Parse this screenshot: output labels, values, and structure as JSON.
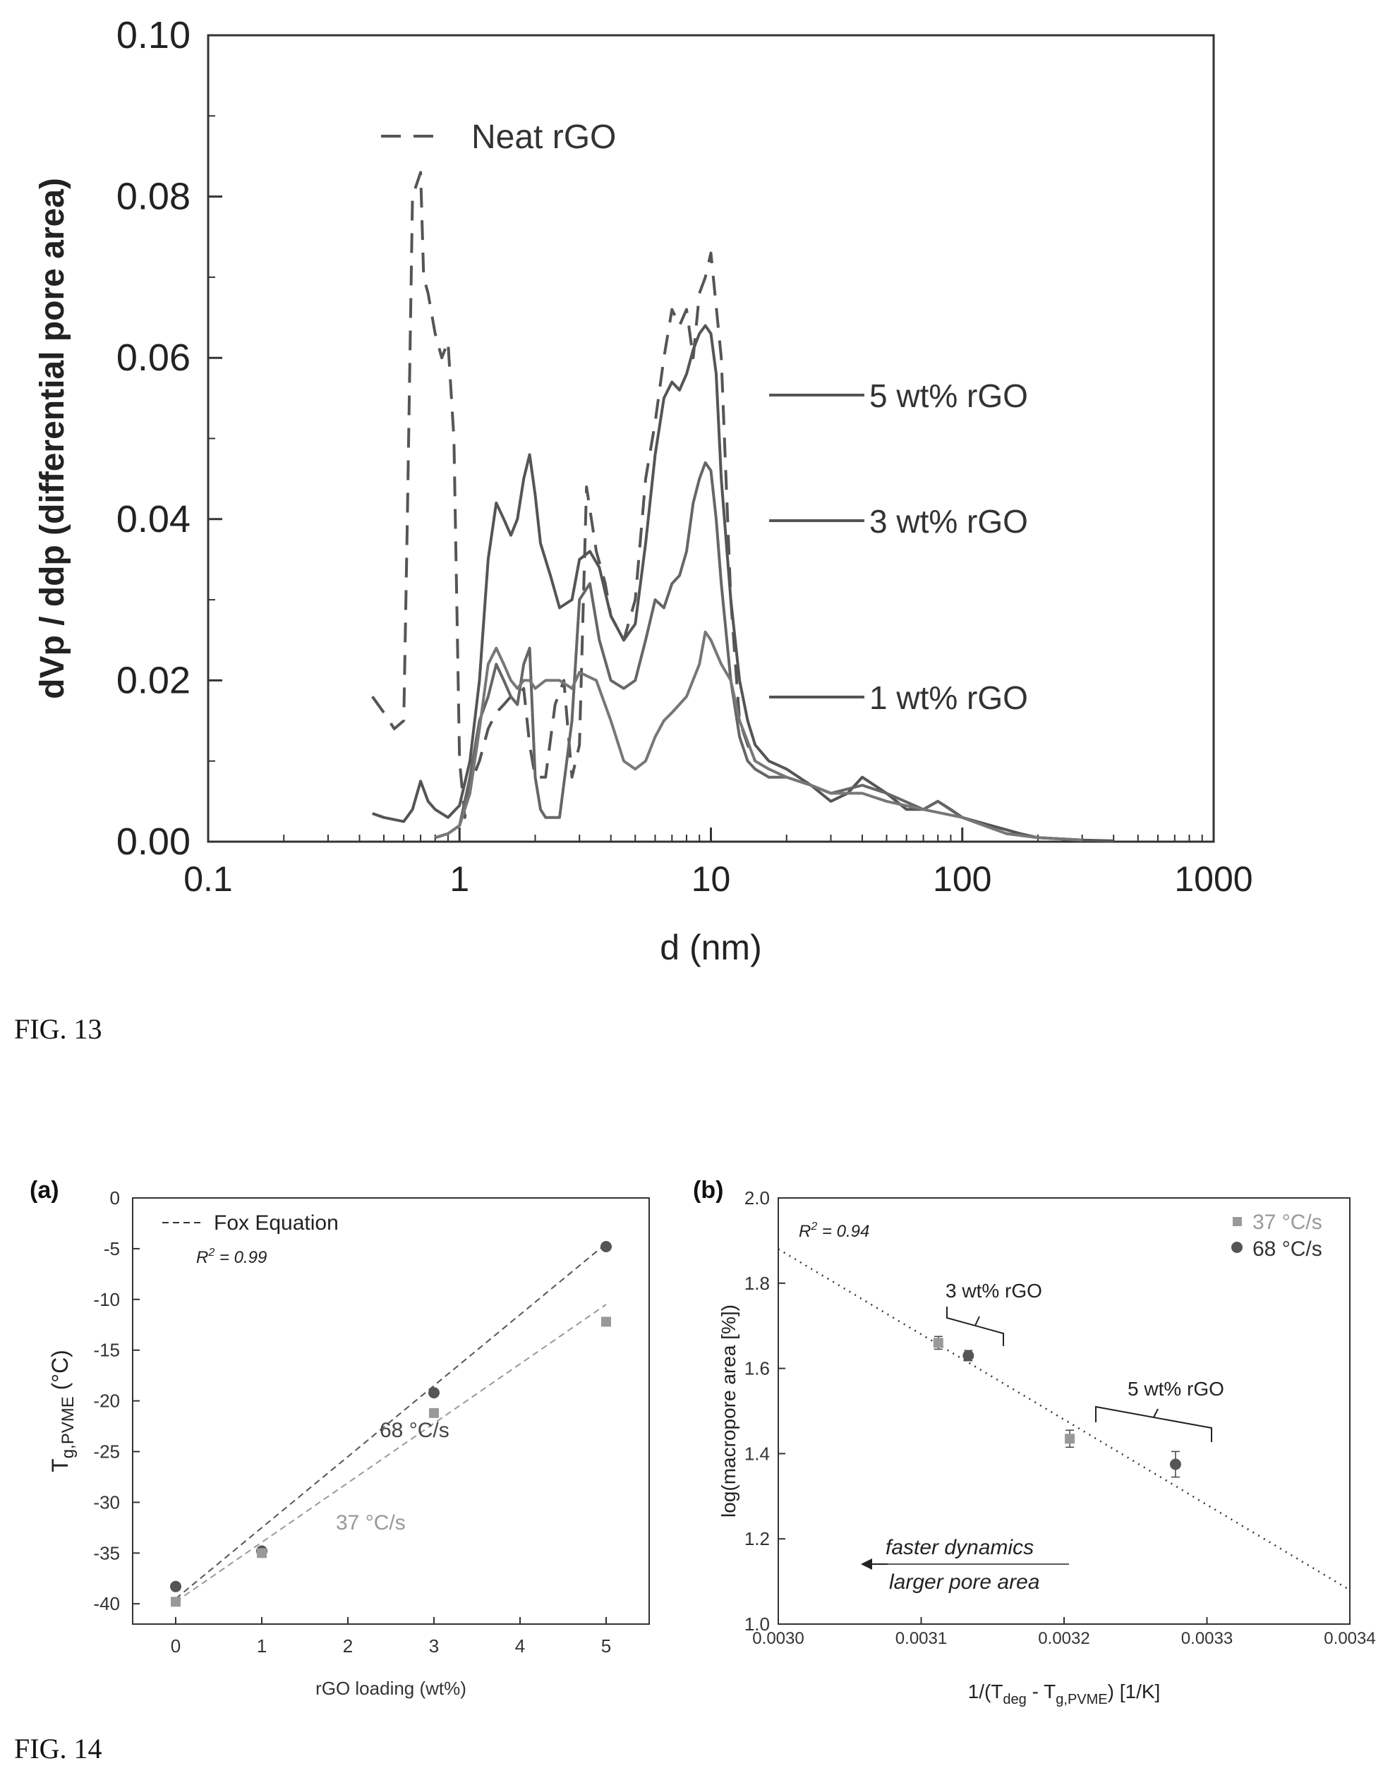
{
  "fig13_label": "FIG. 13",
  "fig14_label": "FIG. 14",
  "chart_data": [
    {
      "type": "line",
      "xlabel": "d (nm)",
      "ylabel": "dVp / ddp (differential pore area)",
      "xscale": "log",
      "xlim": [
        0.1,
        1000
      ],
      "ylim": [
        0,
        0.1
      ],
      "xticks": [
        "0.1",
        "1",
        "10",
        "100",
        "1000"
      ],
      "yticks": [
        "0.00",
        "0.02",
        "0.04",
        "0.06",
        "0.08",
        "0.10"
      ],
      "grid": false,
      "series": [
        {
          "name": "Neat rGO",
          "style": "dashed",
          "x": [
            0.45,
            0.5,
            0.55,
            0.6,
            0.62,
            0.65,
            0.7,
            0.72,
            0.75,
            0.8,
            0.85,
            0.9,
            0.95,
            1.0,
            1.05,
            1.1,
            1.2,
            1.3,
            1.4,
            1.5,
            1.6,
            1.7,
            1.8,
            1.9,
            2.0,
            2.2,
            2.4,
            2.6,
            2.8,
            3.0,
            3.2,
            3.5,
            3.8,
            4.0,
            4.5,
            5.0,
            5.5,
            6.0,
            6.5,
            7.0,
            7.5,
            8.0,
            8.5,
            9.0,
            9.5,
            10.0,
            11.0,
            12.0,
            13.0,
            14.0,
            15.0
          ],
          "y": [
            0.018,
            0.016,
            0.014,
            0.015,
            0.04,
            0.08,
            0.083,
            0.07,
            0.068,
            0.063,
            0.06,
            0.062,
            0.05,
            0.01,
            0.003,
            0.007,
            0.01,
            0.014,
            0.016,
            0.017,
            0.018,
            0.018,
            0.019,
            0.012,
            0.008,
            0.008,
            0.017,
            0.02,
            0.008,
            0.012,
            0.044,
            0.036,
            0.032,
            0.028,
            0.025,
            0.03,
            0.045,
            0.052,
            0.06,
            0.066,
            0.064,
            0.066,
            0.06,
            0.068,
            0.07,
            0.073,
            0.06,
            0.03,
            0.015,
            0.012,
            0.01
          ]
        },
        {
          "name": "5 wt% rGO",
          "style": "solid",
          "x": [
            0.45,
            0.5,
            0.6,
            0.65,
            0.7,
            0.75,
            0.8,
            0.9,
            1.0,
            1.1,
            1.2,
            1.3,
            1.4,
            1.5,
            1.6,
            1.7,
            1.8,
            1.9,
            2.0,
            2.1,
            2.3,
            2.5,
            2.8,
            3.0,
            3.3,
            3.6,
            4.0,
            4.5,
            5.0,
            5.5,
            6.0,
            6.5,
            7.0,
            7.5,
            8.0,
            8.5,
            9.0,
            9.5,
            10.0,
            10.5,
            11.0,
            12.0,
            13.0,
            14.0,
            15.0,
            17.0,
            20.0,
            25.0,
            30.0,
            35.0,
            40.0,
            50.0,
            60.0,
            70.0,
            80.0,
            90.0,
            100.0,
            130.0,
            170.0,
            200.0,
            300.0,
            400.0
          ],
          "y": [
            0.0035,
            0.003,
            0.0025,
            0.004,
            0.0075,
            0.005,
            0.004,
            0.003,
            0.0045,
            0.01,
            0.02,
            0.035,
            0.042,
            0.04,
            0.038,
            0.04,
            0.045,
            0.048,
            0.043,
            0.037,
            0.033,
            0.029,
            0.03,
            0.035,
            0.036,
            0.034,
            0.028,
            0.025,
            0.027,
            0.037,
            0.048,
            0.055,
            0.057,
            0.056,
            0.058,
            0.061,
            0.063,
            0.064,
            0.063,
            0.058,
            0.045,
            0.03,
            0.02,
            0.015,
            0.012,
            0.01,
            0.009,
            0.007,
            0.005,
            0.006,
            0.008,
            0.006,
            0.004,
            0.004,
            0.005,
            0.004,
            0.003,
            0.002,
            0.001,
            0.0005,
            0.0002,
            0.0001
          ]
        },
        {
          "name": "3 wt% rGO",
          "style": "solid",
          "x": [
            0.8,
            0.9,
            1.0,
            1.1,
            1.2,
            1.3,
            1.4,
            1.5,
            1.6,
            1.7,
            1.8,
            1.9,
            2.0,
            2.1,
            2.2,
            2.5,
            2.8,
            3.0,
            3.3,
            3.6,
            4.0,
            4.5,
            5.0,
            5.5,
            6.0,
            6.5,
            7.0,
            7.5,
            8.0,
            8.5,
            9.0,
            9.5,
            10.0,
            10.5,
            11.0,
            12.0,
            13.0,
            14.0,
            15.0,
            17.0,
            20.0,
            25.0,
            30.0,
            40.0,
            50.0,
            70.0,
            80.0,
            100.0,
            150.0,
            200.0,
            300.0
          ],
          "y": [
            0.0005,
            0.001,
            0.002,
            0.008,
            0.015,
            0.018,
            0.022,
            0.02,
            0.018,
            0.017,
            0.022,
            0.024,
            0.008,
            0.004,
            0.003,
            0.003,
            0.015,
            0.03,
            0.032,
            0.025,
            0.02,
            0.019,
            0.02,
            0.025,
            0.03,
            0.029,
            0.032,
            0.033,
            0.036,
            0.042,
            0.045,
            0.047,
            0.046,
            0.04,
            0.032,
            0.02,
            0.013,
            0.01,
            0.009,
            0.008,
            0.008,
            0.007,
            0.006,
            0.007,
            0.006,
            0.004,
            0.005,
            0.003,
            0.001,
            0.0005,
            0.0002
          ]
        },
        {
          "name": "1 wt% rGO",
          "style": "solid",
          "x": [
            0.8,
            0.9,
            1.0,
            1.1,
            1.2,
            1.3,
            1.4,
            1.5,
            1.6,
            1.7,
            1.8,
            1.9,
            2.0,
            2.2,
            2.5,
            2.8,
            3.0,
            3.5,
            4.0,
            4.5,
            5.0,
            5.5,
            6.0,
            6.5,
            7.0,
            8.0,
            9.0,
            9.5,
            10.0,
            11.0,
            12.0,
            13.0,
            15.0,
            17.0,
            20.0,
            25.0,
            30.0,
            40.0,
            50.0,
            70.0,
            100.0,
            150.0,
            200.0,
            300.0
          ],
          "y": [
            0.0005,
            0.001,
            0.002,
            0.006,
            0.014,
            0.022,
            0.024,
            0.022,
            0.02,
            0.019,
            0.02,
            0.02,
            0.019,
            0.02,
            0.02,
            0.019,
            0.021,
            0.02,
            0.015,
            0.01,
            0.009,
            0.01,
            0.013,
            0.015,
            0.016,
            0.018,
            0.022,
            0.026,
            0.025,
            0.022,
            0.02,
            0.015,
            0.01,
            0.009,
            0.008,
            0.007,
            0.006,
            0.006,
            0.005,
            0.004,
            0.003,
            0.001,
            0.0005,
            0.0002
          ]
        }
      ]
    },
    {
      "panel": "(a)",
      "type": "scatter",
      "xlabel": "rGO loading (wt%)",
      "ylabel_main": "T",
      "ylabel_sub": "g,PVME",
      "ylabel_unit": " (°C)",
      "xlim": [
        -0.5,
        5.5
      ],
      "ylim": [
        -42,
        0
      ],
      "xticks": [
        "0",
        "1",
        "2",
        "3",
        "4",
        "5"
      ],
      "yticks": [
        "0",
        "-5",
        "-10",
        "-15",
        "-20",
        "-25",
        "-30",
        "-35",
        "-40"
      ],
      "legend_entry": "Fox Equation",
      "r2_main": "R",
      "r2_sup": "2",
      "r2_val": " = 0.99",
      "series": [
        {
          "name": "68 °C/s",
          "marker": "circle",
          "color": "#555555",
          "x": [
            0,
            1,
            3,
            5
          ],
          "y": [
            -38.3,
            -34.8,
            -19.2,
            -4.8
          ]
        },
        {
          "name": "37 °C/s",
          "marker": "square",
          "color": "#999999",
          "x": [
            0,
            1,
            3,
            5
          ],
          "y": [
            -39.8,
            -35.0,
            -21.2,
            -12.2
          ]
        }
      ],
      "fits": [
        {
          "x": [
            0,
            5
          ],
          "y": [
            -39.5,
            -4.5
          ],
          "color": "#555555"
        },
        {
          "x": [
            0,
            5
          ],
          "y": [
            -39.8,
            -10.5
          ],
          "color": "#999999"
        }
      ]
    },
    {
      "panel": "(b)",
      "type": "scatter",
      "xlabel_main": "1/(T",
      "xlabel_sub1": "deg",
      "xlabel_mid": " - T",
      "xlabel_sub2": "g,PVME",
      "xlabel_end": ") [1/K]",
      "ylabel": "log(macropore area [%])",
      "xlim": [
        0.003,
        0.0034
      ],
      "ylim": [
        1.0,
        2.0
      ],
      "xticks": [
        "0.0030",
        "0.0031",
        "0.0032",
        "0.0033",
        "0.0034"
      ],
      "yticks": [
        "1.0",
        "1.2",
        "1.4",
        "1.6",
        "1.8",
        "2.0"
      ],
      "r2_main": "R",
      "r2_sup": "2",
      "r2_val": " = 0.94",
      "legend": [
        {
          "name": "37 °C/s",
          "marker": "square",
          "color": "#999999"
        },
        {
          "name": "68 °C/s",
          "marker": "circle",
          "color": "#555555"
        }
      ],
      "series": [
        {
          "name": "37 °C/s",
          "marker": "square",
          "color": "#999999",
          "x": [
            0.003112,
            0.003204
          ],
          "y": [
            1.66,
            1.435
          ],
          "err": [
            0.015,
            0.02
          ]
        },
        {
          "name": "68 °C/s",
          "marker": "circle",
          "color": "#555555",
          "x": [
            0.003133,
            0.003278
          ],
          "y": [
            1.63,
            1.375
          ],
          "err": [
            0.012,
            0.03
          ]
        }
      ],
      "fit": {
        "x": [
          0.003,
          0.0034
        ],
        "y": [
          1.88,
          1.08
        ]
      },
      "annotations": {
        "label_3": "3 wt% rGO",
        "label_5": "5 wt% rGO",
        "arrow_line1": "faster dynamics",
        "arrow_line2": "larger pore area"
      }
    }
  ]
}
